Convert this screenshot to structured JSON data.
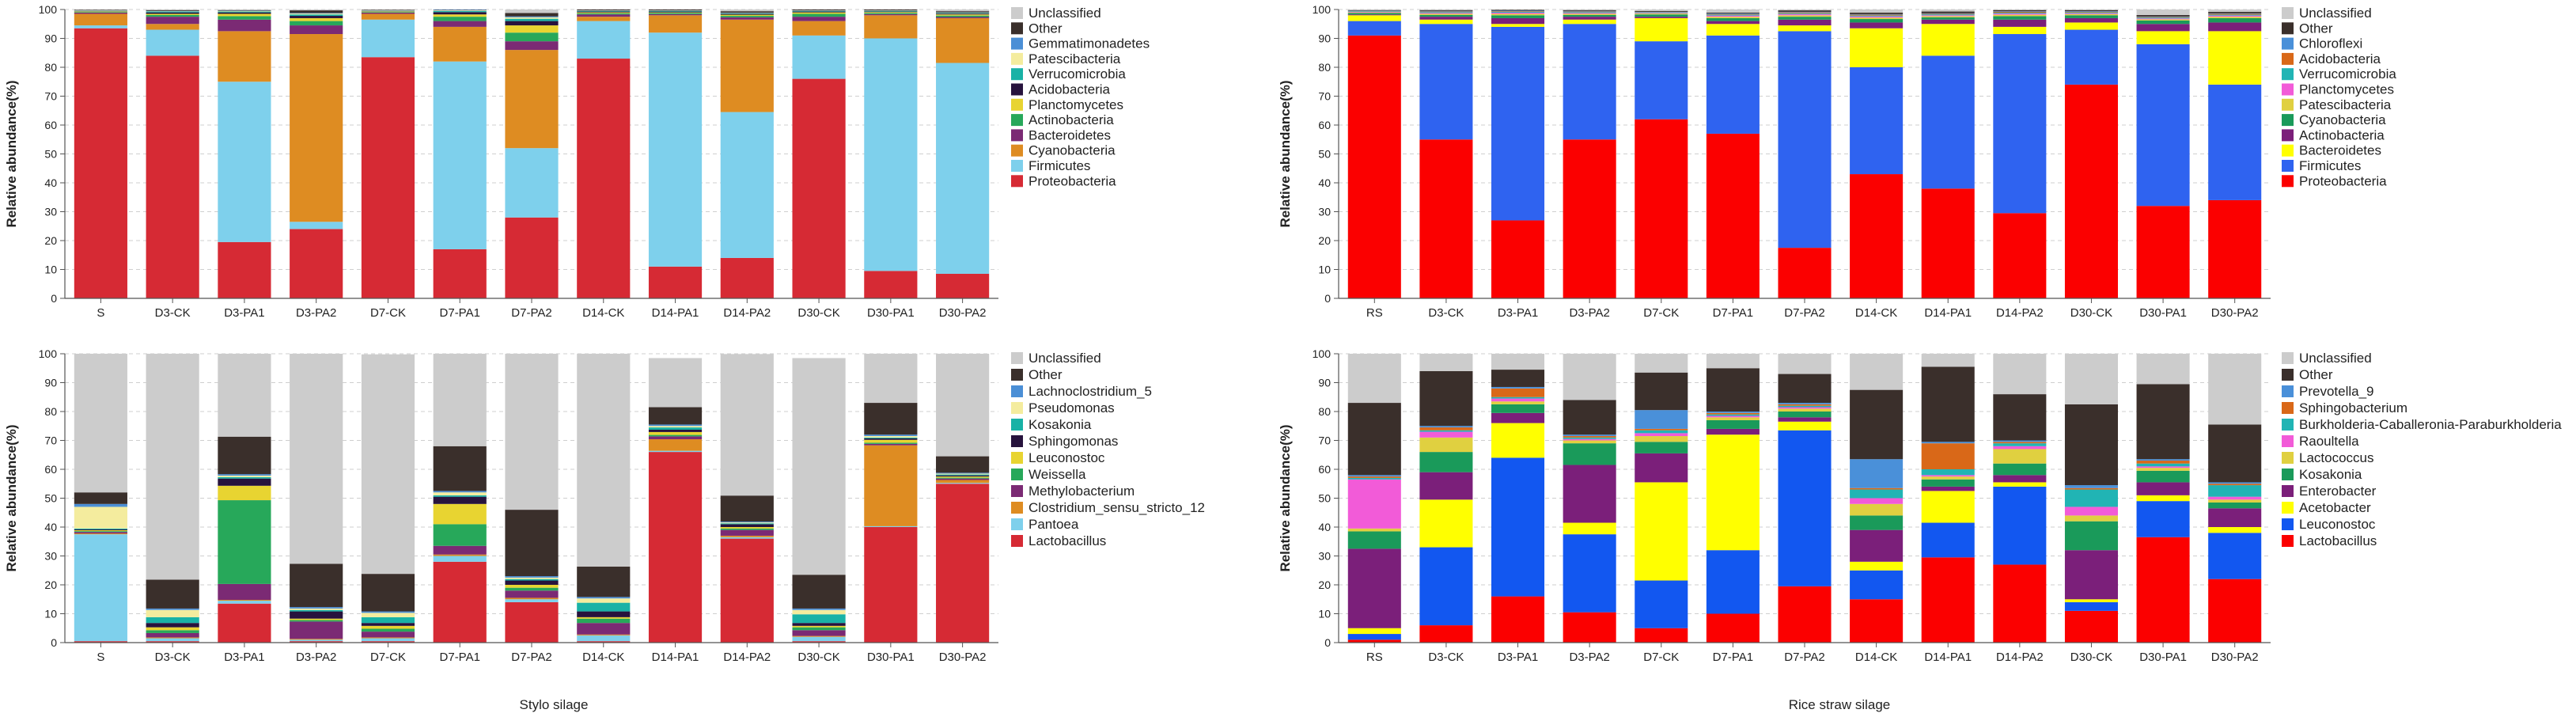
{
  "figure": {
    "left_caption": "Stylo silage",
    "right_caption": "Rice straw silage"
  },
  "chart_data": [
    {
      "id": "stylo-phylum",
      "type": "stacked-bar",
      "title": "",
      "xlabel": "",
      "ylabel": "Relative abundance(%)",
      "ylim": [
        0,
        100
      ],
      "yticks": [
        0,
        10,
        20,
        30,
        40,
        50,
        60,
        70,
        80,
        90,
        100
      ],
      "grid": "horizontal-dashed",
      "legend_position": "right",
      "categories": [
        "S",
        "D3-CK",
        "D3-PA1",
        "D3-PA2",
        "D7-CK",
        "D7-PA1",
        "D7-PA2",
        "D14-CK",
        "D14-PA1",
        "D14-PA2",
        "D30-CK",
        "D30-PA1",
        "D30-PA2"
      ],
      "series": [
        {
          "name": "Proteobacteria",
          "color": "#d62a34",
          "values": [
            93.5,
            84,
            19.5,
            24,
            83.5,
            17,
            28,
            83,
            11,
            14,
            76,
            9.5,
            8.5
          ]
        },
        {
          "name": "Firmicutes",
          "color": "#7ed0ec",
          "values": [
            1,
            9,
            55.5,
            2.5,
            13,
            65,
            24,
            13,
            81,
            50.5,
            15,
            80.5,
            73
          ]
        },
        {
          "name": "Cyanobacteria",
          "color": "#de8c22",
          "values": [
            4,
            2,
            17.5,
            65,
            2,
            12,
            34,
            1.5,
            6,
            32,
            5,
            8,
            15.5
          ]
        },
        {
          "name": "Bacteroidetes",
          "color": "#7b2a74",
          "values": [
            0.4,
            2.5,
            4,
            3,
            0.4,
            2,
            3,
            0.8,
            0.4,
            0.8,
            1.5,
            0.4,
            0.4
          ]
        },
        {
          "name": "Actinobacteria",
          "color": "#27a85a",
          "values": [
            0.2,
            0.6,
            1.2,
            1.5,
            0.2,
            1.5,
            3,
            0.4,
            0.4,
            0.5,
            1,
            0.4,
            0.5
          ]
        },
        {
          "name": "Planctomycetes",
          "color": "#e8d431",
          "values": [
            0.2,
            0.4,
            0.8,
            1,
            0.2,
            0.8,
            2.5,
            0.3,
            0.2,
            0.4,
            0.5,
            0.3,
            0.4
          ]
        },
        {
          "name": "Acidobacteria",
          "color": "#27133d",
          "values": [
            0.1,
            0.5,
            0.5,
            0.8,
            0.1,
            0.8,
            1.5,
            0.3,
            0.3,
            0.3,
            0.3,
            0.2,
            0.3
          ]
        },
        {
          "name": "Verrucomicrobia",
          "color": "#19b2a6",
          "values": [
            0.1,
            0.3,
            0.3,
            0.5,
            0.1,
            0.4,
            0.8,
            0.2,
            0.2,
            0.2,
            0.2,
            0.2,
            0.2
          ]
        },
        {
          "name": "Patescibacteria",
          "color": "#f4ec9e",
          "values": [
            0.1,
            0.1,
            0.2,
            0.3,
            0.1,
            0.2,
            0.5,
            0.1,
            0.1,
            0.1,
            0.1,
            0.1,
            0.1
          ]
        },
        {
          "name": "Gemmatimonadetes",
          "color": "#4b8fd6",
          "values": [
            0.1,
            0.1,
            0.1,
            0.2,
            0.1,
            0.2,
            0.3,
            0.1,
            0.1,
            0.1,
            0.1,
            0.1,
            0.1
          ]
        },
        {
          "name": "Other",
          "color": "#3a2f2b",
          "values": [
            0.2,
            0.3,
            0.2,
            0.9,
            0.2,
            0.5,
            1.2,
            0.3,
            0.3,
            0.5,
            0.3,
            0.3,
            0.4
          ]
        },
        {
          "name": "Unclassified",
          "color": "#cccccc",
          "values": [
            0.1,
            0.2,
            0.2,
            0.3,
            0.1,
            0.6,
            1.2,
            0.0,
            0.0,
            0.6,
            0.0,
            0.0,
            0.6
          ]
        }
      ]
    },
    {
      "id": "rice-phylum",
      "type": "stacked-bar",
      "title": "",
      "xlabel": "",
      "ylabel": "Relative abundance(%)",
      "ylim": [
        0,
        100
      ],
      "yticks": [
        0,
        10,
        20,
        30,
        40,
        50,
        60,
        70,
        80,
        90,
        100
      ],
      "grid": "horizontal-dashed",
      "legend_position": "right",
      "categories": [
        "RS",
        "D3-CK",
        "D3-PA1",
        "D3-PA2",
        "D7-CK",
        "D7-PA1",
        "D7-PA2",
        "D14-CK",
        "D14-PA1",
        "D14-PA2",
        "D30-CK",
        "D30-PA1",
        "D30-PA2"
      ],
      "series": [
        {
          "name": "Proteobacteria",
          "color": "#fb0000",
          "values": [
            91,
            55,
            27,
            55,
            62,
            57,
            17.5,
            43,
            38,
            29.5,
            74,
            32,
            34
          ]
        },
        {
          "name": "Firmicutes",
          "color": "#2f63f0",
          "values": [
            5,
            40,
            67,
            40,
            27,
            34,
            75,
            37,
            46,
            62,
            19,
            56,
            40
          ]
        },
        {
          "name": "Bacteroidetes",
          "color": "#ffff00",
          "values": [
            2,
            1.5,
            1,
            1.5,
            8,
            4,
            2,
            13.5,
            11,
            2.5,
            2.5,
            4.5,
            18.5
          ]
        },
        {
          "name": "Actinobacteria",
          "color": "#7b1f7a",
          "values": [
            0.3,
            1,
            2,
            1,
            0.5,
            1,
            2,
            2,
            1.5,
            2.5,
            1.5,
            2.5,
            3
          ]
        },
        {
          "name": "Cyanobacteria",
          "color": "#1a9a5a",
          "values": [
            0.5,
            0.6,
            1,
            0.6,
            0.8,
            1,
            1,
            1.2,
            0.8,
            1.2,
            1,
            1.2,
            1.5
          ]
        },
        {
          "name": "Patescibacteria",
          "color": "#e0d040",
          "values": [
            0.2,
            0.4,
            0.5,
            0.4,
            0.3,
            0.5,
            0.5,
            0.5,
            0.4,
            0.5,
            0.4,
            0.4,
            0.5
          ]
        },
        {
          "name": "Planctomycetes",
          "color": "#f25bd8",
          "values": [
            0.2,
            0.3,
            0.4,
            0.3,
            0.2,
            0.4,
            0.4,
            0.4,
            0.3,
            0.4,
            0.3,
            0.3,
            0.4
          ]
        },
        {
          "name": "Verrucomicrobia",
          "color": "#21b4b4",
          "values": [
            0.2,
            0.3,
            0.3,
            0.3,
            0.2,
            0.3,
            0.3,
            0.3,
            0.3,
            0.3,
            0.3,
            0.3,
            0.3
          ]
        },
        {
          "name": "Acidobacteria",
          "color": "#d96818",
          "values": [
            0.1,
            0.2,
            0.2,
            0.2,
            0.1,
            0.2,
            0.3,
            0.3,
            0.2,
            0.3,
            0.2,
            0.2,
            0.3
          ]
        },
        {
          "name": "Chloroflexi",
          "color": "#4a90d9",
          "values": [
            0.1,
            0.2,
            0.2,
            0.2,
            0.1,
            0.2,
            0.2,
            0.2,
            0.2,
            0.2,
            0.2,
            0.2,
            0.2
          ]
        },
        {
          "name": "Other",
          "color": "#3a2f2b",
          "values": [
            0.2,
            0.3,
            0.3,
            0.3,
            0.3,
            0.3,
            0.5,
            0.5,
            0.6,
            0.4,
            0.4,
            0.5,
            0.5
          ]
        },
        {
          "name": "Unclassified",
          "color": "#cccccc",
          "values": [
            0.2,
            0.3,
            0.1,
            0.2,
            0.5,
            1.1,
            0.3,
            1.1,
            0.7,
            0.2,
            0.7,
            1.9,
            0.8
          ]
        }
      ]
    },
    {
      "id": "stylo-genus",
      "type": "stacked-bar",
      "title": "",
      "xlabel": "",
      "ylabel": "Relative abundance(%)",
      "ylim": [
        0,
        100
      ],
      "yticks": [
        0,
        10,
        20,
        30,
        40,
        50,
        60,
        70,
        80,
        90,
        100
      ],
      "grid": "horizontal-dashed",
      "legend_position": "right",
      "categories": [
        "S",
        "D3-CK",
        "D3-PA1",
        "D3-PA2",
        "D7-CK",
        "D7-PA1",
        "D7-PA2",
        "D14-CK",
        "D14-PA1",
        "D14-PA2",
        "D30-CK",
        "D30-PA1",
        "D30-PA2"
      ],
      "series": [
        {
          "name": "Lactobacillus",
          "color": "#d62a34",
          "values": [
            0.5,
            0.5,
            13.5,
            0.5,
            0.5,
            28,
            14,
            0.5,
            66,
            36,
            0.5,
            40,
            55
          ]
        },
        {
          "name": "Pantoea",
          "color": "#7ed0ec",
          "values": [
            37,
            1,
            1,
            0.5,
            1,
            2,
            1,
            2,
            0.4,
            0.5,
            1.5,
            0.3,
            0.3
          ]
        },
        {
          "name": "Clostridium_sensu_stricto_12",
          "color": "#de8c22",
          "values": [
            0.3,
            0.3,
            0.3,
            0.3,
            0.3,
            0.5,
            0.5,
            0.3,
            4,
            0.5,
            0.3,
            28,
            1
          ]
        },
        {
          "name": "Methylobacterium",
          "color": "#7b2a74",
          "values": [
            0.5,
            1.5,
            5.5,
            6,
            2,
            3,
            2.5,
            4,
            1,
            2,
            2,
            0.5,
            0.5
          ]
        },
        {
          "name": "Weissella",
          "color": "#27a85a",
          "values": [
            0.3,
            1,
            29,
            0.5,
            1,
            7.5,
            1,
            1.5,
            0.5,
            0.5,
            1,
            0.4,
            0.3
          ]
        },
        {
          "name": "Leuconostoc",
          "color": "#e8d431",
          "values": [
            0.3,
            1,
            5,
            0.5,
            1,
            7,
            1,
            0.5,
            1,
            0.5,
            0.5,
            1,
            0.4
          ]
        },
        {
          "name": "Sphingomonas",
          "color": "#27133d",
          "values": [
            0.3,
            1.5,
            2.5,
            2.5,
            1,
            2.5,
            1.5,
            2,
            0.8,
            1,
            1,
            0.5,
            0.4
          ]
        },
        {
          "name": "Kosakonia",
          "color": "#19b2a6",
          "values": [
            0.3,
            2,
            0.5,
            0.5,
            2,
            0.5,
            0.5,
            3,
            0.8,
            0.3,
            3,
            0.3,
            0.3
          ]
        },
        {
          "name": "Pseudomonas",
          "color": "#f4ec9e",
          "values": [
            7.5,
            2.5,
            0.5,
            0.5,
            1.5,
            1,
            0.5,
            1.5,
            0.5,
            0.3,
            1.5,
            0.5,
            0.3
          ]
        },
        {
          "name": "Lachnoclostridium_5",
          "color": "#4b8fd6",
          "values": [
            1,
            0.5,
            0.5,
            0.5,
            0.5,
            0.5,
            0.5,
            0.5,
            0.5,
            0.3,
            0.5,
            0.5,
            0.3
          ]
        },
        {
          "name": "Other",
          "color": "#3a2f2b",
          "values": [
            4,
            10,
            13,
            15,
            13,
            15.5,
            23,
            10.5,
            6,
            9,
            11.7,
            11,
            5.7
          ]
        },
        {
          "name": "Unclassified",
          "color": "#cccccc",
          "values": [
            48,
            79,
            29,
            73,
            76,
            32,
            54,
            74,
            17,
            49,
            75,
            17,
            36
          ]
        }
      ]
    },
    {
      "id": "rice-genus",
      "type": "stacked-bar",
      "title": "",
      "xlabel": "",
      "ylabel": "Relative abundance(%)",
      "ylim": [
        0,
        100
      ],
      "yticks": [
        0,
        10,
        20,
        30,
        40,
        50,
        60,
        70,
        80,
        90,
        100
      ],
      "grid": "horizontal-dashed",
      "legend_position": "right",
      "categories": [
        "RS",
        "D3-CK",
        "D3-PA1",
        "D3-PA2",
        "D7-CK",
        "D7-PA1",
        "D7-PA2",
        "D14-CK",
        "D14-PA1",
        "D14-PA2",
        "D30-CK",
        "D30-PA1",
        "D30-PA2"
      ],
      "series": [
        {
          "name": "Lactobacillus",
          "color": "#fb0000",
          "values": [
            1,
            6,
            16,
            10.5,
            5,
            10,
            19.5,
            15,
            29.5,
            27,
            11,
            36.5,
            22
          ]
        },
        {
          "name": "Leuconostoc",
          "color": "#1257f0",
          "values": [
            2,
            27,
            48,
            27,
            16.5,
            22,
            54,
            10,
            12,
            27,
            3,
            12.5,
            16
          ]
        },
        {
          "name": "Acetobacter",
          "color": "#ffff00",
          "values": [
            2,
            16.5,
            12,
            4,
            34,
            40,
            3,
            3,
            11,
            1.5,
            1,
            2,
            2
          ]
        },
        {
          "name": "Enterobacter",
          "color": "#7b1f7a",
          "values": [
            27.5,
            9.5,
            3.5,
            20,
            10,
            2,
            1.5,
            11,
            1.5,
            2.5,
            17,
            4.5,
            6.5
          ]
        },
        {
          "name": "Kosakonia",
          "color": "#1a9a5a",
          "values": [
            6,
            7,
            3,
            7.5,
            4,
            3,
            2,
            5,
            2.5,
            4,
            10,
            4,
            2
          ]
        },
        {
          "name": "Lactococcus",
          "color": "#e0d040",
          "values": [
            1,
            5,
            1,
            1,
            2,
            1,
            1,
            4,
            1,
            5,
            2,
            1,
            1
          ]
        },
        {
          "name": "Raoultella",
          "color": "#f25bd8",
          "values": [
            17,
            2,
            1,
            0.5,
            1,
            0.5,
            0.5,
            2,
            0.5,
            1,
            3,
            0.5,
            1
          ]
        },
        {
          "name": "Burkholderia-Caballeronia-Paraburkholderia",
          "color": "#21b4b4",
          "values": [
            0.5,
            0.5,
            0.5,
            0.5,
            1,
            0.5,
            0.5,
            3,
            2,
            1,
            6,
            1,
            4
          ]
        },
        {
          "name": "Sphingobacterium",
          "color": "#d96818",
          "values": [
            0.5,
            1,
            3,
            0.5,
            0.5,
            0.5,
            0.5,
            0.5,
            9,
            0.5,
            0.5,
            1,
            0.5
          ]
        },
        {
          "name": "Prevotella_9",
          "color": "#4a90d9",
          "values": [
            0.5,
            0.5,
            0.5,
            0.5,
            6.5,
            0.5,
            0.5,
            10,
            0.5,
            0.5,
            1,
            0.5,
            0.5
          ]
        },
        {
          "name": "Other",
          "color": "#3a2f2b",
          "values": [
            25,
            19,
            6,
            12,
            13,
            15,
            10,
            24,
            26,
            16,
            28,
            26,
            20
          ]
        },
        {
          "name": "Unclassified",
          "color": "#cccccc",
          "values": [
            17,
            6,
            5.5,
            16,
            6.5,
            5,
            7,
            12.5,
            4.5,
            14,
            17.5,
            10.5,
            24.5
          ]
        }
      ]
    }
  ]
}
